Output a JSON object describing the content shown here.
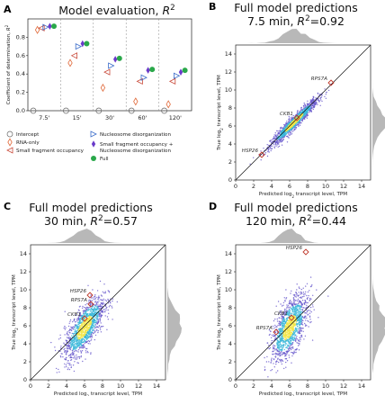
{
  "chart_data": [
    {
      "id": "A",
      "panel_letter": "A",
      "type": "scatter",
      "title": "Model evaluation, ",
      "title_symbol": "R",
      "title_sup": "2",
      "ylabel": "Coefficient of determination, ",
      "ylabel_symbol": "R",
      "ylabel_sup": "2",
      "ylim": [
        0,
        1
      ],
      "yticks": [
        "0.0",
        "0.2",
        "0.4",
        "0.6",
        "0.8"
      ],
      "ytick_values": [
        0,
        0.2,
        0.4,
        0.6,
        0.8
      ],
      "categories": [
        "7.5'",
        "15'",
        "30'",
        "60'",
        "120'"
      ],
      "series": [
        {
          "name": "Intercept",
          "marker": "circle",
          "color": "#666666",
          "values": [
            0,
            0,
            0,
            0,
            0
          ]
        },
        {
          "name": "RNA-only",
          "marker": "diamond",
          "color": "#e06a3a",
          "values": [
            0.88,
            0.52,
            0.25,
            0.1,
            0.07
          ]
        },
        {
          "name": "Small fragment occupancy",
          "marker": "tri-left",
          "color": "#c94a3a",
          "values": [
            0.9,
            0.6,
            0.42,
            0.32,
            0.32
          ]
        },
        {
          "name": "Nucleosome disorganization",
          "marker": "tri-right",
          "color": "#3a6bc9",
          "values": [
            0.91,
            0.7,
            0.49,
            0.36,
            0.38
          ]
        },
        {
          "name": "Small fragment occupancy + Nucleosome disorganization",
          "marker": "diamond-filled",
          "color": "#6a3ac9",
          "values": [
            0.92,
            0.73,
            0.56,
            0.44,
            0.42
          ]
        },
        {
          "name": "Full",
          "marker": "dot",
          "color": "#2aa84a",
          "values": [
            0.92,
            0.73,
            0.57,
            0.45,
            0.44
          ]
        }
      ],
      "legend": [
        "Intercept",
        "RNA-only",
        "Small fragment occupancy",
        "Nucleosome disorganization",
        "Small fragment occupancy +",
        "Nucleosome disorganization",
        "Full"
      ]
    },
    {
      "id": "B",
      "panel_letter": "B",
      "type": "scatter",
      "title_line1": "Full model predictions",
      "title_line2_prefix": "7.5 min, ",
      "r2_symbol": "R",
      "r2_sup": "2",
      "r2_value": "=0.92",
      "xlabel": "Predicted log",
      "xlabel_sub": "2",
      "xlabel_rest": " transcript level, TPM",
      "ylabel": "True log",
      "ylabel_sub": "2",
      "ylabel_rest": " transcript level, TPM",
      "xlim": [
        0,
        15
      ],
      "ylim": [
        0,
        15
      ],
      "ticks": [
        "0",
        "2",
        "4",
        "6",
        "8",
        "10",
        "12",
        "14"
      ],
      "tick_values": [
        0,
        2,
        4,
        6,
        8,
        10,
        12,
        14
      ],
      "cloud": {
        "center": [
          6.5,
          6.4
        ],
        "spread": [
          1.3,
          1.3
        ],
        "corr": 0.96
      },
      "highlighted_genes": [
        {
          "label": "RPS7A",
          "x": 10.6,
          "y": 10.8
        },
        {
          "label": "CKB1",
          "x": 6.8,
          "y": 6.9
        },
        {
          "label": "HSP26",
          "x": 2.9,
          "y": 2.8
        }
      ]
    },
    {
      "id": "C",
      "panel_letter": "C",
      "type": "scatter",
      "title_line1": "Full model predictions",
      "title_line2_prefix": "30 min, ",
      "r2_symbol": "R",
      "r2_sup": "2",
      "r2_value": "=0.57",
      "xlabel": "Predicted log",
      "xlabel_sub": "2",
      "xlabel_rest": " transcript level, TPM",
      "ylabel": "True log",
      "ylabel_sub": "2",
      "ylabel_rest": " transcript level, TPM",
      "xlim": [
        0,
        15
      ],
      "ylim": [
        0,
        15
      ],
      "ticks": [
        "0",
        "2",
        "4",
        "6",
        "8",
        "10",
        "12",
        "14"
      ],
      "tick_values": [
        0,
        2,
        4,
        6,
        8,
        10,
        12,
        14
      ],
      "cloud": {
        "center": [
          6.0,
          5.8
        ],
        "spread": [
          1.1,
          1.7
        ],
        "corr": 0.72
      },
      "highlighted_genes": [
        {
          "label": "HSP26",
          "x": 6.6,
          "y": 9.4
        },
        {
          "label": "RPS7A",
          "x": 6.7,
          "y": 8.4
        },
        {
          "label": "CKB1",
          "x": 6.0,
          "y": 6.8
        }
      ]
    },
    {
      "id": "D",
      "panel_letter": "D",
      "type": "scatter",
      "title_line1": "Full model predictions",
      "title_line2_prefix": "120 min, ",
      "r2_symbol": "R",
      "r2_sup": "2",
      "r2_value": "=0.44",
      "xlabel": "Predicted log",
      "xlabel_sub": "2",
      "xlabel_rest": " transcript level, TPM",
      "ylabel": "True log",
      "ylabel_sub": "2",
      "ylabel_rest": " transcript level, TPM",
      "xlim": [
        0,
        15
      ],
      "ylim": [
        0,
        15
      ],
      "ticks": [
        "0",
        "2",
        "4",
        "6",
        "8",
        "10",
        "12",
        "14"
      ],
      "tick_values": [
        0,
        2,
        4,
        6,
        8,
        10,
        12,
        14
      ],
      "cloud": {
        "center": [
          6.0,
          5.8
        ],
        "spread": [
          1.0,
          1.8
        ],
        "corr": 0.62
      },
      "highlighted_genes": [
        {
          "label": "HSP26",
          "x": 7.8,
          "y": 14.2
        },
        {
          "label": "CKB1",
          "x": 6.2,
          "y": 6.9
        },
        {
          "label": "RPS7A",
          "x": 4.5,
          "y": 5.3
        }
      ]
    }
  ],
  "colors": {
    "density_low": "#6a5acd",
    "density_mid": "#39b7d9",
    "density_high": "#f3e64a",
    "marginal": "#9a9a9a",
    "highlight": "#c0392b"
  }
}
